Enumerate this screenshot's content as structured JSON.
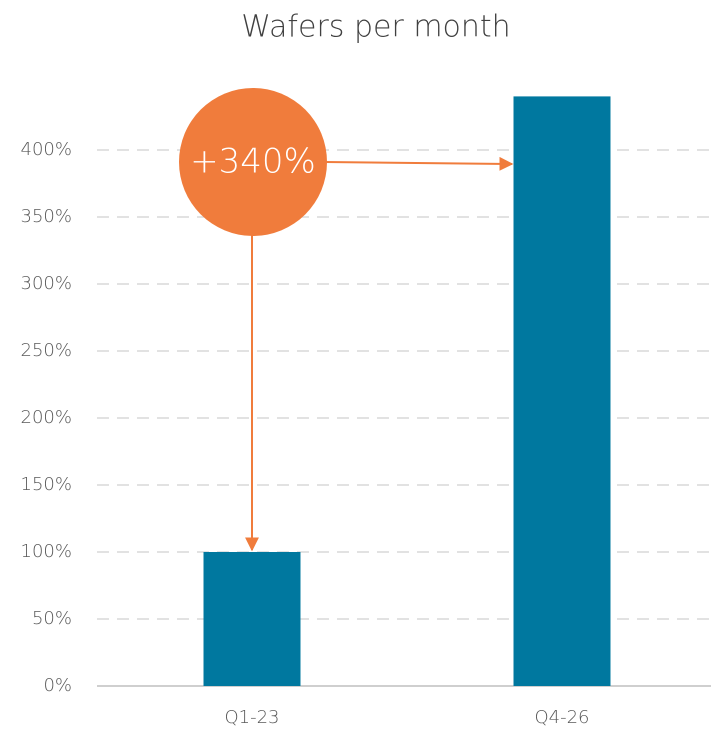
{
  "chart_data": {
    "type": "bar",
    "title": "Wafers per month",
    "categories": [
      "Q1-23",
      "Q4-26"
    ],
    "values": [
      100,
      440
    ],
    "color": "#00789f",
    "ylim": [
      0,
      450
    ],
    "yticks": [
      {
        "value": 0,
        "label": "0%"
      },
      {
        "value": 50,
        "label": "50%"
      },
      {
        "value": 100,
        "label": "100%"
      },
      {
        "value": 150,
        "label": "150%"
      },
      {
        "value": 200,
        "label": "200%"
      },
      {
        "value": 250,
        "label": "250%"
      },
      {
        "value": 300,
        "label": "300%"
      },
      {
        "value": 350,
        "label": "350%"
      },
      {
        "value": 400,
        "label": "400%"
      }
    ],
    "grid": true,
    "annotation": "+340%"
  }
}
